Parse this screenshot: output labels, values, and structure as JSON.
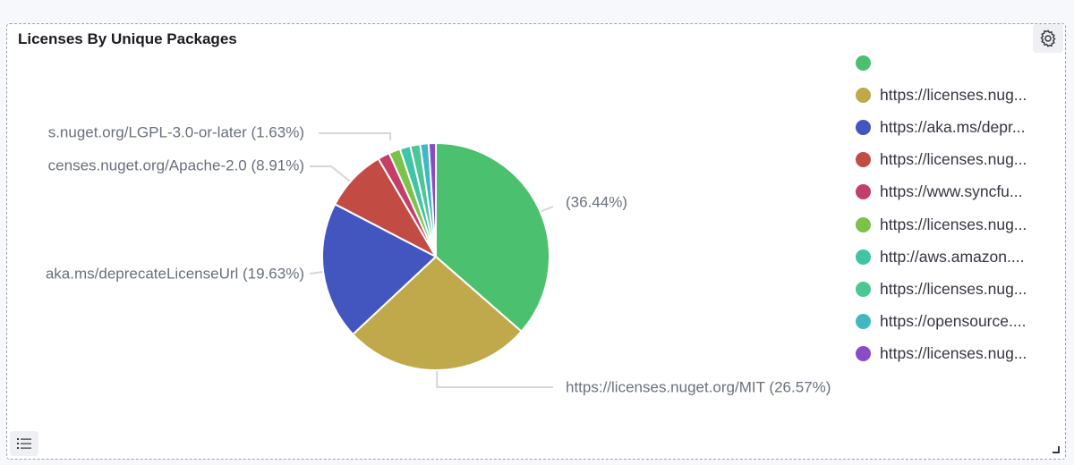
{
  "panel": {
    "title": "Licenses By Unique Packages"
  },
  "icons": {
    "settings": "gear-icon",
    "legend_toggle": "list-icon",
    "resize": "resize-corner-icon"
  },
  "chart_data": {
    "type": "pie",
    "title": "Licenses By Unique Packages",
    "legend_position": "right",
    "slices": [
      {
        "legend": "",
        "value": 36.44,
        "color": "#4bc06f"
      },
      {
        "legend": "https://licenses.nug...",
        "value": 26.57,
        "color": "#c0a94a"
      },
      {
        "legend": "https://aka.ms/depr...",
        "value": 19.63,
        "color": "#4356c0"
      },
      {
        "legend": "https://licenses.nug...",
        "value": 8.91,
        "color": "#c24c44"
      },
      {
        "legend": "https://www.syncfu...",
        "value": 1.7,
        "color": "#c43f68"
      },
      {
        "legend": "https://licenses.nug...",
        "value": 1.63,
        "color": "#7bc24b"
      },
      {
        "legend": "http://aws.amazon....",
        "value": 1.5,
        "color": "#3fc4a5"
      },
      {
        "legend": "https://licenses.nug...",
        "value": 1.4,
        "color": "#4cc694"
      },
      {
        "legend": "https://opensource....",
        "value": 1.2,
        "color": "#42b7c4"
      },
      {
        "legend": "https://licenses.nug...",
        "value": 1.02,
        "color": "#8a4cc6"
      }
    ],
    "slice_labels": [
      {
        "slice": 0,
        "text": "(36.44%)"
      },
      {
        "slice": 1,
        "text": "https://licenses.nuget.org/MIT (26.57%)"
      },
      {
        "slice": 2,
        "text": "aka.ms/deprecateLicenseUrl (19.63%)"
      },
      {
        "slice": 3,
        "text": "censes.nuget.org/Apache-2.0 (8.91%)"
      },
      {
        "slice": 5,
        "text": "s.nuget.org/LGPL-3.0-or-later (1.63%)"
      }
    ]
  }
}
